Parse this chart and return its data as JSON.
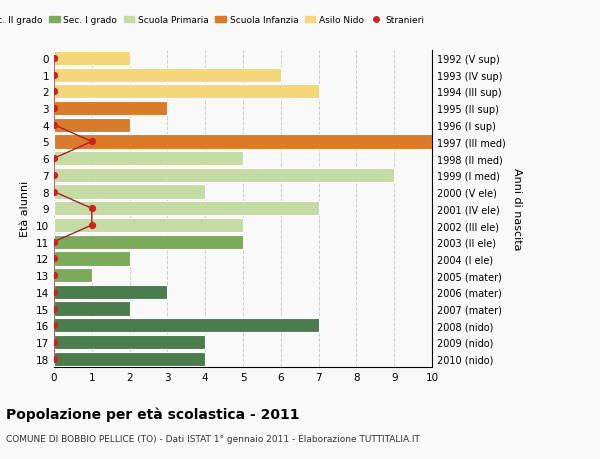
{
  "ages": [
    18,
    17,
    16,
    15,
    14,
    13,
    12,
    11,
    10,
    9,
    8,
    7,
    6,
    5,
    4,
    3,
    2,
    1,
    0
  ],
  "right_labels": [
    "1992 (V sup)",
    "1993 (IV sup)",
    "1994 (III sup)",
    "1995 (II sup)",
    "1996 (I sup)",
    "1997 (III med)",
    "1998 (II med)",
    "1999 (I med)",
    "2000 (V ele)",
    "2001 (IV ele)",
    "2002 (III ele)",
    "2003 (II ele)",
    "2004 (I ele)",
    "2005 (mater)",
    "2006 (mater)",
    "2007 (mater)",
    "2008 (nido)",
    "2009 (nido)",
    "2010 (nido)"
  ],
  "bar_values": [
    4,
    4,
    7,
    2,
    3,
    1,
    2,
    5,
    5,
    7,
    4,
    9,
    5,
    10,
    2,
    3,
    7,
    6,
    2
  ],
  "bar_colors": [
    "#4a7c4e",
    "#4a7c4e",
    "#4a7c4e",
    "#4a7c4e",
    "#4a7c4e",
    "#7caa5c",
    "#7caa5c",
    "#7caa5c",
    "#c5dba4",
    "#c5dba4",
    "#c5dba4",
    "#c5dba4",
    "#c5dba4",
    "#d97b2b",
    "#d97b2b",
    "#d97b2b",
    "#f5d67a",
    "#f5d67a",
    "#f5d67a"
  ],
  "stranieri_ages": [
    18,
    17,
    16,
    15,
    14,
    13,
    12,
    11,
    10,
    9,
    8,
    7,
    6,
    5,
    4,
    3,
    2,
    1,
    0
  ],
  "stranieri_x": [
    0,
    0,
    0,
    0,
    0,
    0,
    0,
    0,
    1,
    1,
    0,
    0,
    0,
    1,
    0,
    0,
    0,
    0,
    0
  ],
  "legend_labels": [
    "Sec. II grado",
    "Sec. I grado",
    "Scuola Primaria",
    "Scuola Infanzia",
    "Asilo Nido",
    "Stranieri"
  ],
  "legend_colors": [
    "#4a7c4e",
    "#7caa5c",
    "#c5dba4",
    "#d97b2b",
    "#f5d67a",
    "#cc2222"
  ],
  "title": "Popolazione per età scolastica - 2011",
  "subtitle": "COMUNE DI BOBBIO PELLICE (TO) - Dati ISTAT 1° gennaio 2011 - Elaborazione TUTTITALIA.IT",
  "ylabel": "Età alunni",
  "right_ylabel": "Anni di nascita",
  "xlim": [
    0,
    10
  ],
  "xticks": [
    0,
    1,
    2,
    3,
    4,
    5,
    6,
    7,
    8,
    9,
    10
  ],
  "bg_color": "#f9f9f9",
  "bar_height": 0.85
}
